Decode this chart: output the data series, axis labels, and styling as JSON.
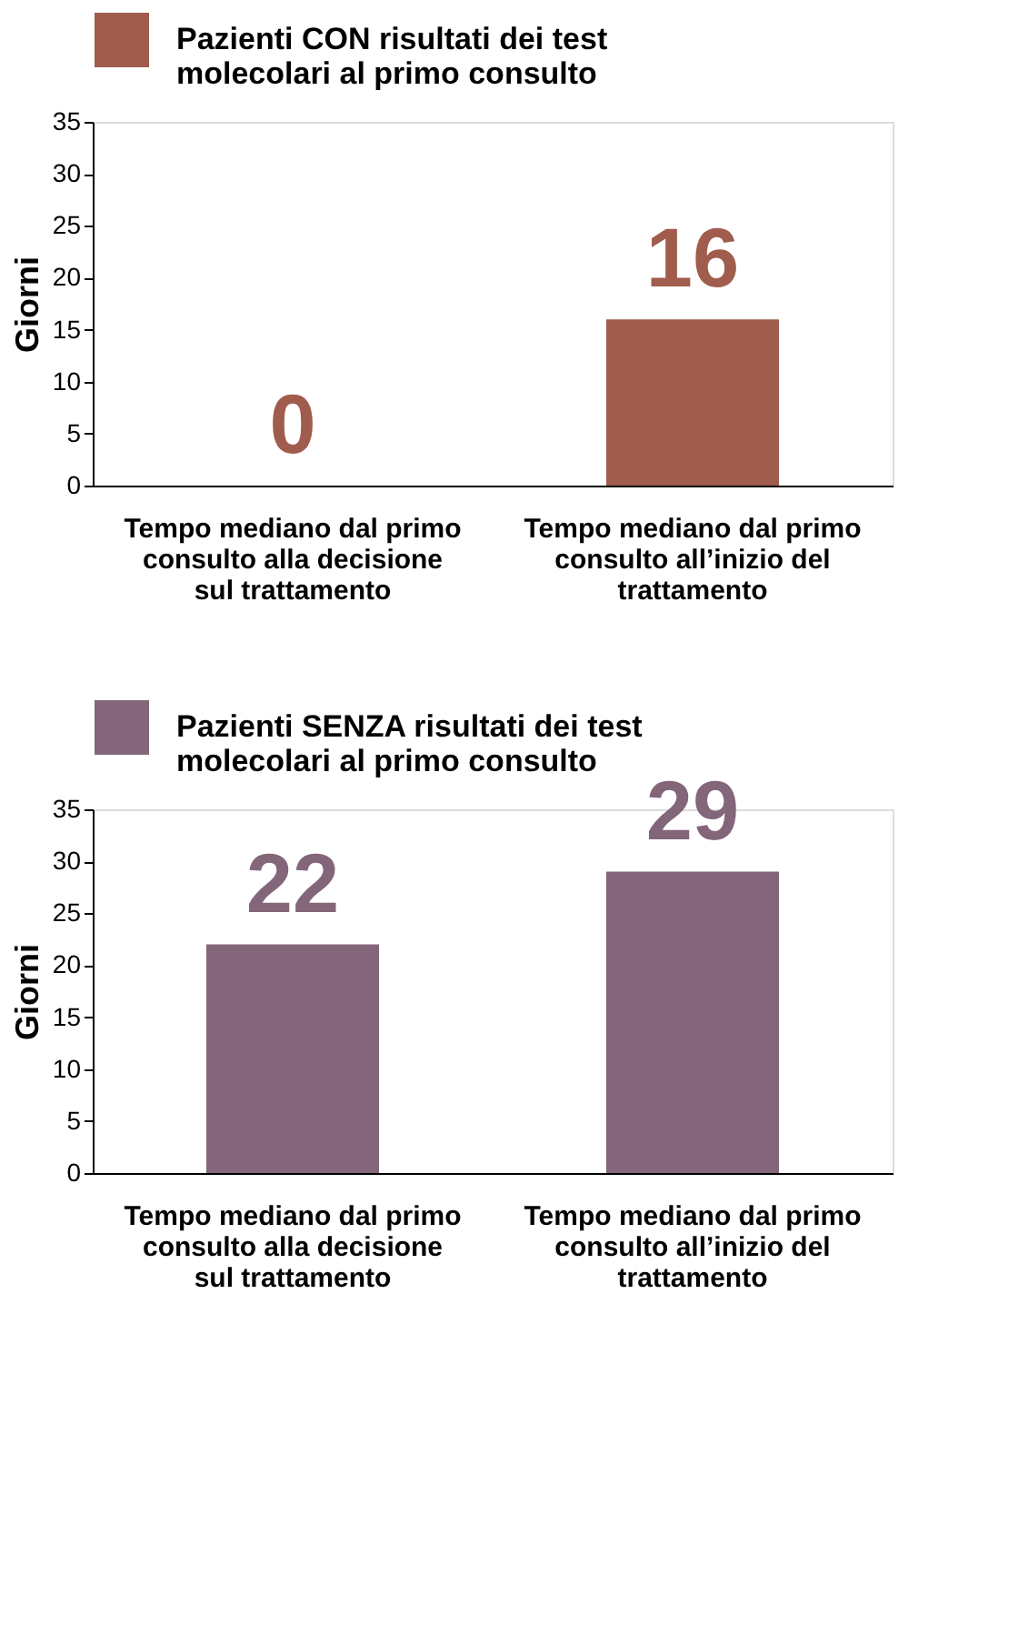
{
  "chart_data": [
    {
      "type": "bar",
      "categories": [
        "Tempo mediano dal primo consulto alla decisione sul trattamento",
        "Tempo mediano dal primo consulto all’inizio del trattamento"
      ],
      "series": [
        {
          "name": "Pazienti CON risultati dei test molecolari al primo consulto",
          "color": "#a05c4c",
          "values": [
            0,
            16
          ]
        }
      ],
      "ylabel": "Giorni",
      "ylim": [
        0,
        35
      ],
      "yticks": [
        0,
        5,
        10,
        15,
        20,
        25,
        30,
        35
      ],
      "grid": false,
      "legend": "top",
      "data_labels": true
    },
    {
      "type": "bar",
      "categories": [
        "Tempo mediano dal primo consulto alla decisione sul trattamento",
        "Tempo mediano dal primo consulto all’inizio del trattamento"
      ],
      "series": [
        {
          "name": "Pazienti SENZA risultati dei test molecolari al primo consulto",
          "color": "#836679",
          "values": [
            22,
            29
          ]
        }
      ],
      "ylabel": "Giorni",
      "ylim": [
        0,
        35
      ],
      "yticks": [
        0,
        5,
        10,
        15,
        20,
        25,
        30,
        35
      ],
      "grid": false,
      "legend": "top",
      "data_labels": true
    }
  ]
}
